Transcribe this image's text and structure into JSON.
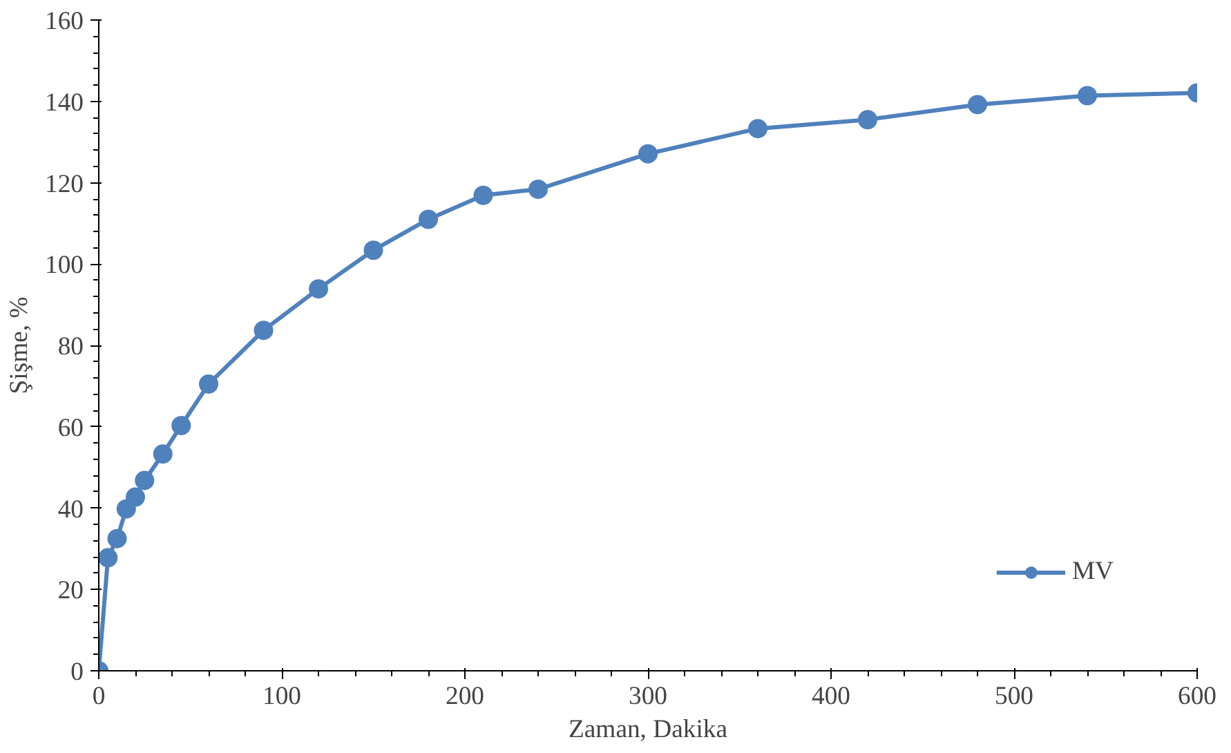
{
  "chart_data": {
    "type": "line",
    "xlabel": "Zaman, Dakika",
    "ylabel": "Şişme, %",
    "x": [
      0,
      5,
      10,
      15,
      20,
      25,
      35,
      45,
      60,
      90,
      120,
      150,
      180,
      210,
      240,
      300,
      360,
      420,
      480,
      540,
      600
    ],
    "series": [
      {
        "name": "MV",
        "color": "#4f81bd",
        "values": [
          0,
          27.8,
          32.5,
          39.8,
          42.7,
          46.8,
          53.3,
          60.3,
          70.5,
          83.7,
          93.9,
          103.4,
          111,
          116.9,
          118.4,
          127.1,
          133.3,
          135.5,
          139.2,
          141.4,
          142.1
        ]
      }
    ],
    "xlim": [
      0,
      600
    ],
    "ylim": [
      0,
      160
    ],
    "xticks": [
      0,
      100,
      200,
      300,
      400,
      500,
      600
    ],
    "yticks": [
      0,
      20,
      40,
      60,
      80,
      100,
      120,
      140,
      160
    ],
    "grid": false,
    "legend": "bottom right",
    "marker": "circle",
    "line_style": "solid"
  }
}
